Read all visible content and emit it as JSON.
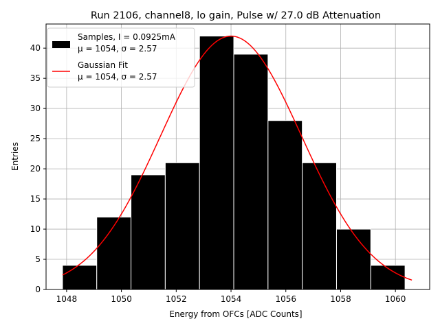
{
  "chart_data": {
    "type": "bar",
    "title": "Run 2106, channel8, lo gain, Pulse w/ 27.0 dB Attenuation",
    "xlabel": "Energy from OFCs [ADC Counts]",
    "ylabel": "Entries",
    "xlim": [
      1047.25,
      1061.25
    ],
    "ylim": [
      0,
      44
    ],
    "xticks": [
      1048,
      1050,
      1052,
      1054,
      1056,
      1058,
      1060
    ],
    "yticks": [
      0,
      5,
      10,
      15,
      20,
      25,
      30,
      35,
      40
    ],
    "grid": true,
    "legend_position": "top-left",
    "colors": {
      "bars": "#000000",
      "bar_edge": "#ffffff",
      "fit": "#ff0000",
      "grid": "#b0b0b0"
    },
    "histogram": {
      "name": "Samples, I = 0.0925mA",
      "stats": "μ = 1054, σ = 2.57",
      "bins": [
        {
          "x0": 1047.85,
          "x1": 1049.1,
          "value": 4
        },
        {
          "x0": 1049.1,
          "x1": 1050.35,
          "value": 12
        },
        {
          "x0": 1050.35,
          "x1": 1051.6,
          "value": 19
        },
        {
          "x0": 1051.6,
          "x1": 1052.85,
          "value": 21
        },
        {
          "x0": 1052.85,
          "x1": 1054.1,
          "value": 42
        },
        {
          "x0": 1054.1,
          "x1": 1055.35,
          "value": 39
        },
        {
          "x0": 1055.35,
          "x1": 1056.6,
          "value": 28
        },
        {
          "x0": 1056.6,
          "x1": 1057.85,
          "value": 21
        },
        {
          "x0": 1057.85,
          "x1": 1059.1,
          "value": 10
        },
        {
          "x0": 1059.1,
          "x1": 1060.35,
          "value": 4
        }
      ]
    },
    "fit": {
      "name": "Gaussian Fit",
      "stats": "μ = 1054, σ = 2.57",
      "amplitude": 42,
      "mu": 1054,
      "sigma": 2.57,
      "x_range": [
        1047.85,
        1060.6
      ]
    }
  }
}
